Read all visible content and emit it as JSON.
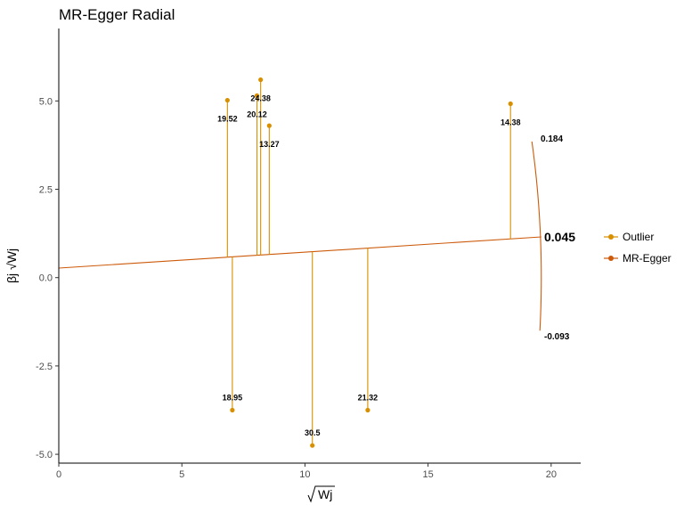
{
  "chart_data": {
    "type": "scatter",
    "title": "MR-Egger Radial",
    "xlabel": "Wj",
    "ylabel": "βj √Wj",
    "xlim": [
      0,
      21.2
    ],
    "ylim": [
      -5.25,
      7.05
    ],
    "x_ticks": [
      0,
      5,
      10,
      15,
      20
    ],
    "y_ticks": [
      -5.0,
      -2.5,
      0.0,
      2.5,
      5.0
    ],
    "x_tick_labels": [
      "0",
      "5",
      "10",
      "15",
      "20"
    ],
    "y_tick_labels": [
      "-5.0",
      "-2.5",
      "0.0",
      "2.5",
      "5.0"
    ],
    "grid": false,
    "legend_position": "right",
    "egger_line": {
      "intercept": 0.27,
      "slope": 0.045
    },
    "arc": {
      "radius": 19.6,
      "top_estimate": "0.184",
      "main_estimate": "0.045",
      "bottom_estimate": "-0.093",
      "top_y": 3.85,
      "bottom_y": -1.5
    },
    "series": [
      {
        "name": "Outlier",
        "color": "#d89000",
        "points": [
          {
            "x": 6.85,
            "y": 5.02,
            "label": "19.52"
          },
          {
            "x": 7.05,
            "y": -3.75,
            "label": "18.95"
          },
          {
            "x": 8.05,
            "y": 5.15,
            "label": "20.12"
          },
          {
            "x": 8.2,
            "y": 5.6,
            "label": "24.38"
          },
          {
            "x": 8.55,
            "y": 4.3,
            "label": "13.27"
          },
          {
            "x": 10.3,
            "y": -4.75,
            "label": "30.5"
          },
          {
            "x": 12.55,
            "y": -3.75,
            "label": "21.32"
          },
          {
            "x": 18.35,
            "y": 4.92,
            "label": "14.38"
          }
        ]
      },
      {
        "name": "MR-Egger",
        "color": "#cc5a0a"
      }
    ]
  }
}
